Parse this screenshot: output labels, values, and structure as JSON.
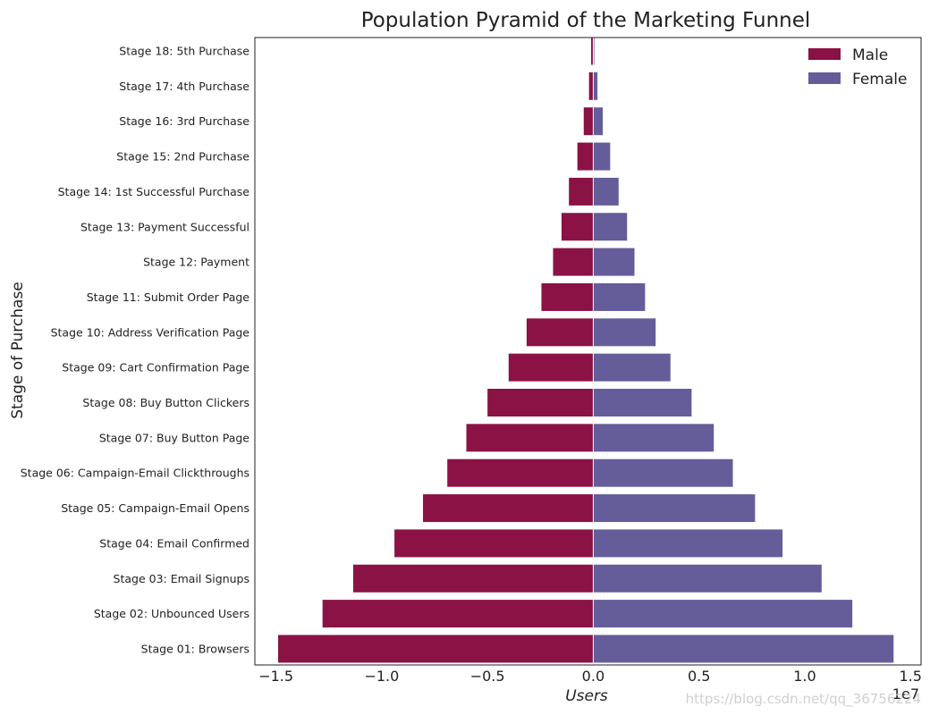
{
  "chart_data": {
    "type": "bar",
    "orientation": "horizontal-diverging",
    "title": "Population Pyramid of the Marketing Funnel",
    "xlabel": "Users",
    "ylabel": "Stage of Purchase",
    "x_offset_text": "1e7",
    "xlim": [
      -1.6,
      1.55
    ],
    "xticks": [
      -1.5,
      -1.0,
      -0.5,
      0.0,
      0.5,
      1.0,
      1.5
    ],
    "xtick_labels": [
      "−1.5",
      "−1.0",
      "−0.5",
      "0.0",
      "0.5",
      "1.0",
      "1.5"
    ],
    "categories": [
      "Stage 18: 5th Purchase",
      "Stage 17: 4th Purchase",
      "Stage 16: 3rd Purchase",
      "Stage 15: 2nd Purchase",
      "Stage 14: 1st Successful Purchase",
      "Stage 13: Payment Successful",
      "Stage 12: Payment",
      "Stage 11: Submit Order Page",
      "Stage 10: Address Verification Page",
      "Stage 09: Cart Confirmation Page",
      "Stage 08: Buy Button Clickers",
      "Stage 07: Buy Button Page",
      "Stage 06: Campaign-Email Clickthroughs",
      "Stage 05: Campaign-Email Opens",
      "Stage 04: Email Confirmed",
      "Stage 03: Email Signups",
      "Stage 02: Unbounced Users",
      "Stage 01: Browsers"
    ],
    "series": [
      {
        "name": "Male",
        "color": "#8b1244",
        "values": [
          -0.01,
          -0.02,
          -0.045,
          -0.075,
          -0.115,
          -0.15,
          -0.19,
          -0.245,
          -0.315,
          -0.4,
          -0.5,
          -0.6,
          -0.69,
          -0.805,
          -0.94,
          -1.135,
          -1.28,
          -1.49
        ]
      },
      {
        "name": "Female",
        "color": "#655c9a",
        "values": [
          0.005,
          0.02,
          0.045,
          0.08,
          0.12,
          0.16,
          0.195,
          0.245,
          0.295,
          0.365,
          0.465,
          0.57,
          0.66,
          0.765,
          0.895,
          1.08,
          1.225,
          1.42
        ]
      }
    ],
    "legend_position": "top-right",
    "grid": false
  },
  "watermark": "https://blog.csdn.net/qq_36756224"
}
